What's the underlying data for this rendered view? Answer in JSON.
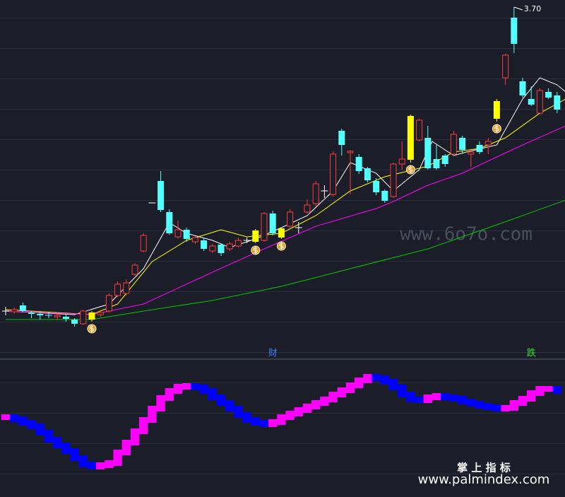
{
  "chart_data": [
    {
      "type": "candlestick",
      "fields": [
        "open",
        "high",
        "low",
        "close"
      ],
      "candles": [
        [
          2.84,
          2.852,
          2.828,
          2.84
        ],
        [
          2.838,
          2.85,
          2.832,
          2.844
        ],
        [
          2.856,
          2.864,
          2.836,
          2.84
        ],
        [
          2.836,
          2.84,
          2.82,
          2.832
        ],
        [
          2.832,
          2.84,
          2.816,
          2.828
        ],
        [
          2.828,
          2.836,
          2.82,
          2.826
        ],
        [
          2.824,
          2.834,
          2.816,
          2.828
        ],
        [
          2.824,
          2.83,
          2.81,
          2.818
        ],
        [
          2.816,
          2.82,
          2.796,
          2.804
        ],
        [
          2.804,
          2.844,
          2.8,
          2.84
        ],
        [
          2.836,
          2.84,
          2.81,
          2.816
        ],
        [
          2.83,
          2.844,
          2.824,
          2.836
        ],
        [
          2.84,
          2.89,
          2.836,
          2.884
        ],
        [
          2.884,
          2.924,
          2.88,
          2.916
        ],
        [
          2.89,
          2.93,
          2.884,
          2.92
        ],
        [
          2.944,
          2.976,
          2.94,
          2.97
        ],
        [
          3.01,
          3.06,
          3.006,
          3.054
        ],
        [
          3.146,
          3.146,
          3.146,
          3.146
        ],
        [
          3.208,
          3.236,
          3.12,
          3.126
        ],
        [
          3.12,
          3.128,
          3.056,
          3.06
        ],
        [
          3.05,
          3.096,
          3.044,
          3.07
        ],
        [
          3.07,
          3.076,
          3.036,
          3.044
        ],
        [
          3.036,
          3.052,
          3.03,
          3.048
        ],
        [
          3.04,
          3.048,
          3.01,
          3.016
        ],
        [
          3.01,
          3.03,
          3.004,
          3.024
        ],
        [
          3.028,
          3.032,
          2.996,
          3.004
        ],
        [
          3.016,
          3.036,
          3.01,
          3.03
        ],
        [
          3.024,
          3.048,
          3.02,
          3.04
        ],
        [
          3.04,
          3.048,
          3.032,
          3.04
        ],
        [
          3.068,
          3.072,
          3.032,
          3.036
        ],
        [
          3.04,
          3.12,
          3.036,
          3.116
        ],
        [
          3.116,
          3.124,
          3.054,
          3.06
        ],
        [
          3.074,
          3.076,
          3.044,
          3.048
        ],
        [
          3.08,
          3.128,
          3.076,
          3.12
        ],
        [
          3.076,
          3.092,
          3.06,
          3.076
        ],
        [
          3.12,
          3.156,
          3.116,
          3.14
        ],
        [
          3.144,
          3.208,
          3.136,
          3.2
        ],
        [
          3.18,
          3.196,
          3.16,
          3.18
        ],
        [
          3.17,
          3.292,
          3.164,
          3.284
        ],
        [
          3.35,
          3.356,
          3.28,
          3.31
        ],
        [
          3.288,
          3.296,
          3.17,
          3.292
        ],
        [
          3.276,
          3.284,
          3.228,
          3.236
        ],
        [
          3.244,
          3.248,
          3.204,
          3.21
        ],
        [
          3.208,
          3.216,
          3.168,
          3.176
        ],
        [
          3.18,
          3.184,
          3.146,
          3.152
        ],
        [
          3.164,
          3.26,
          3.16,
          3.256
        ],
        [
          3.256,
          3.32,
          3.24,
          3.27
        ],
        [
          3.392,
          3.396,
          3.26,
          3.268
        ],
        [
          3.324,
          3.384,
          3.32,
          3.38
        ],
        [
          3.33,
          3.364,
          3.24,
          3.244
        ],
        [
          3.27,
          3.31,
          3.24,
          3.244
        ],
        [
          3.28,
          3.284,
          3.248,
          3.256
        ],
        [
          3.284,
          3.35,
          3.28,
          3.34
        ],
        [
          3.33,
          3.336,
          3.288,
          3.296
        ],
        [
          3.284,
          3.296,
          3.248,
          3.29
        ],
        [
          3.31,
          3.32,
          3.284,
          3.29
        ],
        [
          3.31,
          3.33,
          3.284,
          3.32
        ],
        [
          3.434,
          3.44,
          3.376,
          3.384
        ],
        [
          3.5,
          3.568,
          3.48,
          3.564
        ],
        [
          3.67,
          3.7,
          3.57,
          3.596
        ],
        [
          3.49,
          3.5,
          3.444,
          3.45
        ],
        [
          3.44,
          3.476,
          3.42,
          3.424
        ],
        [
          3.4,
          3.47,
          3.396,
          3.464
        ],
        [
          3.46,
          3.47,
          3.44,
          3.444
        ],
        [
          3.45,
          3.46,
          3.4,
          3.41
        ]
      ],
      "signals": [
        10,
        29,
        32,
        47,
        57
      ],
      "up_color": "#ff3a3a",
      "down_color": "#54ffff",
      "signal_color": "#ffff00",
      "doji_color": "#ffffff",
      "peak_label": "3.70",
      "ylim": [
        2.78,
        3.72
      ],
      "lines": [
        {
          "color": "#ffffff",
          "x": [
            0,
            8,
            12,
            16,
            19,
            21,
            24,
            26,
            29,
            32,
            35,
            38,
            40,
            43,
            45,
            48,
            49.5,
            52,
            53.5,
            57,
            60,
            62,
            64,
            65
          ],
          "values": [
            2.84,
            2.83,
            2.86,
            2.96,
            3.09,
            3.06,
            3.04,
            3.02,
            3.044,
            3.076,
            3.11,
            3.18,
            3.26,
            3.23,
            3.18,
            3.24,
            3.32,
            3.28,
            3.29,
            3.31,
            3.44,
            3.5,
            3.48,
            3.46
          ]
        },
        {
          "color": "#ffff00",
          "x": [
            0,
            10,
            13,
            17,
            21,
            25,
            28,
            32,
            36,
            40,
            44,
            49,
            52,
            55,
            58,
            62,
            65
          ],
          "values": [
            2.844,
            2.83,
            2.86,
            2.98,
            3.04,
            3.07,
            3.05,
            3.06,
            3.11,
            3.18,
            3.22,
            3.25,
            3.29,
            3.3,
            3.33,
            3.4,
            3.44
          ]
        },
        {
          "color": "#ff00ff",
          "x": [
            0,
            10,
            16,
            24,
            30,
            36,
            43,
            45,
            49,
            53,
            57,
            60,
            65
          ],
          "values": [
            2.84,
            2.83,
            2.86,
            2.95,
            3.016,
            3.08,
            3.13,
            3.15,
            3.196,
            3.23,
            3.276,
            3.31,
            3.364
          ]
        },
        {
          "color": "#00c800",
          "x": [
            0,
            10,
            16,
            24,
            32,
            40,
            49,
            57,
            65
          ],
          "values": [
            2.816,
            2.816,
            2.84,
            2.87,
            2.91,
            2.96,
            3.016,
            3.084,
            3.154
          ]
        }
      ]
    },
    {
      "type": "step",
      "values": [
        9,
        8.7,
        8.2,
        7.7,
        6.8,
        5.8,
        5,
        4.2,
        3.2,
        2.3,
        2,
        2.2,
        2.5,
        4,
        5.4,
        7,
        8.6,
        10.2,
        11.7,
        12.7,
        13.3,
        13.4,
        13.2,
        12.7,
        11.8,
        11,
        10.2,
        9.3,
        8.6,
        8.2,
        8,
        8.3,
        9,
        9.5,
        10,
        10.5,
        11,
        11.5,
        12.2,
        12.8,
        13.5,
        14.2,
        14.7,
        14.5,
        14,
        13.2,
        12.2,
        11.5,
        11.4,
        11.8,
        12,
        11.8,
        11.6,
        11.2,
        10.9,
        10.6,
        10.4,
        10.2,
        10.3,
        11,
        11.6,
        12.4,
        13,
        13,
        12.7
      ],
      "rise_color": "#ff00ff",
      "fall_color": "#0000ff",
      "ylim": [
        -2,
        17
      ],
      "annotations": [
        {
          "text": "财",
          "index": 31,
          "color": "#3a7bff"
        },
        {
          "text": "跌",
          "index": 61,
          "color": "#33dd33"
        }
      ]
    }
  ],
  "watermarks": {
    "site": "www.6o7o.com",
    "brand": "掌 上 指 标",
    "url": "www.palmindex.com"
  }
}
